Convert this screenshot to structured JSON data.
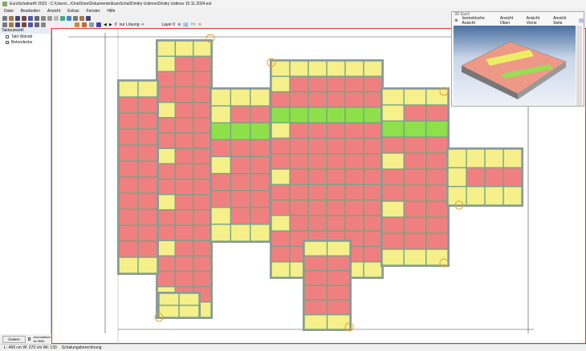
{
  "window": {
    "title": "EuroSchalnet® 2023 - C:\\Users\\...\\OneDrive\\Dokumente\\EuroSchal\\Dmitry Ustinov\\Dmitry Ustinov 15.11.2024.esl"
  },
  "menu": [
    "Datei",
    "Bearbeiten",
    "Ansicht",
    "Extras",
    "Fenster",
    "Hilfe"
  ],
  "toolbar": {
    "solution_label": "nur Lösung ->",
    "layer_label": "Layer 0",
    "counter": "0"
  },
  "left_panel": {
    "title": "Taktauswahl",
    "items": [
      {
        "label": "Takt Wände",
        "checked": true
      },
      {
        "label": "Betondecke",
        "checked": true
      }
    ],
    "change_button": "Ändern",
    "auto_label": "Automatisch ab Mitte"
  },
  "eye": {
    "title": "3D Eye2",
    "tabs": [
      "Isometrische Ansicht",
      "Ansicht Oben",
      "Ansicht Vorne",
      "Ansicht Seite"
    ]
  },
  "status": {
    "dims": "L: 460 cm W: 270 cm Wt: 130",
    "mode": "Schalungsberechnung"
  },
  "colors": {
    "panel": "#f08080",
    "edge": "#f5f08a",
    "green": "#8ee04a",
    "wall": "#8a9a9a",
    "frame": "#e33333"
  }
}
